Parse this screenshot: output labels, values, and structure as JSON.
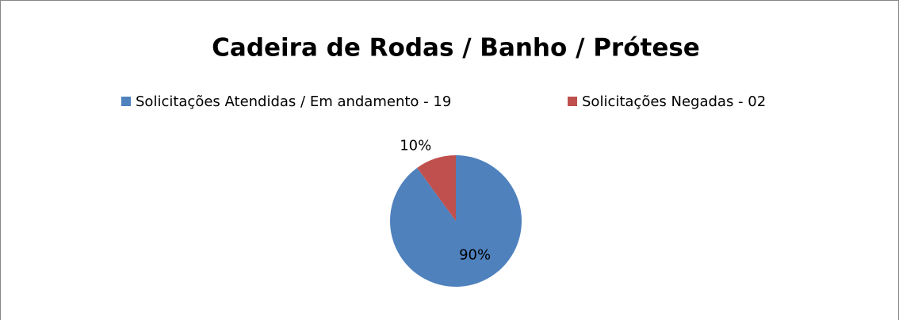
{
  "chart_data": {
    "type": "pie",
    "title": "Cadeira de Rodas / Banho / Prótese",
    "categories": [
      "Solicitações Atendidas / Em andamento - 19",
      "Solicitações Negadas - 02"
    ],
    "values": [
      90,
      10
    ],
    "value_labels": [
      "90%",
      "10%"
    ],
    "colors": [
      "#4f81bd",
      "#c0504d"
    ]
  }
}
